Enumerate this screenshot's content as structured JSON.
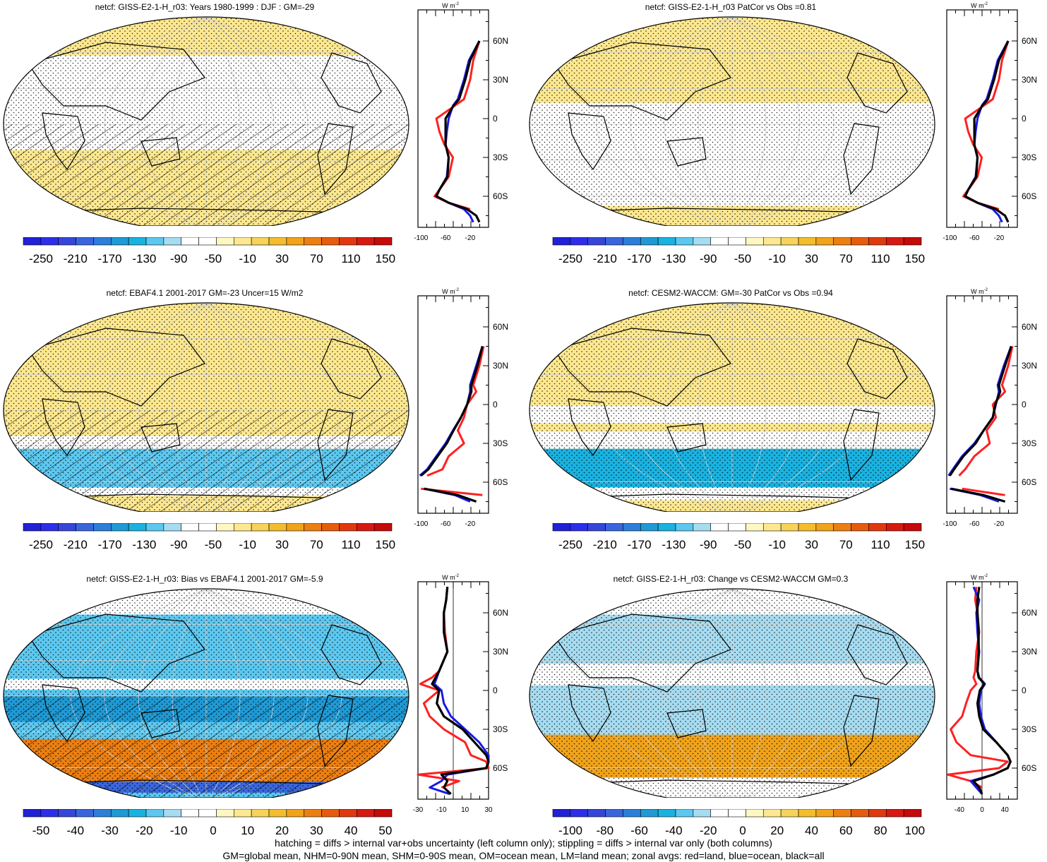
{
  "colors": {
    "blue_scale": [
      "#2121d8",
      "#2e2eea",
      "#3546d9",
      "#3a66dd",
      "#2c7fd9",
      "#1f9ad5",
      "#1ab2e0",
      "#5cc8f0",
      "#a6dcf1"
    ],
    "warm_scale": [
      "#fff7c2",
      "#fde88f",
      "#f8d35a",
      "#f3bd2f",
      "#f0a31b",
      "#ec7f12",
      "#e65c0e",
      "#e03910",
      "#d61a12",
      "#c50a0a"
    ],
    "white": "#ffffff",
    "land_line": "#ff2020",
    "ocean_line": "#1a1ae0",
    "all_line": "#000000"
  },
  "footer": {
    "line1": "hatching = diffs > internal var+obs uncertainty (left column only); stippling = diffs > internal var only (both columns)",
    "line2": "GM=global mean, NHM=0-90N mean, SHM=0-90S mean, OM=ocean mean, LM=land mean; zonal avgs: red=land, blue=ocean, black=all"
  },
  "panels": [
    {
      "id": "giss",
      "title": "netcf: GISS-E2-1-H_r03: Years 1980-1999 : DJF : GM=-29",
      "hatching": true,
      "colorbar_labels": [
        "-250",
        "-210",
        "-170",
        "-130",
        "-90",
        "-50",
        "-10",
        "30",
        "70",
        "110",
        "150"
      ],
      "zonal": {
        "unit_label": "W m",
        "unit_exp": "-2",
        "lat_labels": [
          "60N",
          "30N",
          "0",
          "30S",
          "60S"
        ],
        "lat_values": [
          60,
          30,
          0,
          -30,
          -60
        ],
        "x_labels": [
          "-100",
          "-60",
          "-20"
        ],
        "x_values": [
          -100,
          -60,
          -20
        ],
        "xlim": [
          -105,
          10
        ],
        "zero_line": false
      }
    },
    {
      "id": "giss_patcor",
      "title": "netcf: GISS-E2-1-H_r03 PatCor vs Obs =0.81",
      "hatching": false,
      "colorbar_labels": [
        "-250",
        "-210",
        "-170",
        "-130",
        "-90",
        "-50",
        "-10",
        "30",
        "70",
        "110",
        "150"
      ],
      "zonal": {
        "unit_label": "W m",
        "unit_exp": "-2",
        "lat_labels": [
          "60N",
          "30N",
          "0",
          "30S",
          "60S"
        ],
        "lat_values": [
          60,
          30,
          0,
          -30,
          -60
        ],
        "x_labels": [
          "-100",
          "-60",
          "-20"
        ],
        "x_values": [
          -100,
          -60,
          -20
        ],
        "xlim": [
          -105,
          10
        ],
        "zero_line": false
      }
    },
    {
      "id": "ebaf",
      "title": "netcf: EBAF4.1 2001-2017 GM=-23 Uncer=15 W/m2",
      "hatching": true,
      "colorbar_labels": [
        "-250",
        "-210",
        "-170",
        "-130",
        "-90",
        "-50",
        "-10",
        "30",
        "70",
        "110",
        "150"
      ],
      "zonal": {
        "unit_label": "W m",
        "unit_exp": "-2",
        "lat_labels": [
          "60N",
          "30N",
          "0",
          "30S",
          "60S"
        ],
        "lat_values": [
          60,
          30,
          0,
          -30,
          -60
        ],
        "x_labels": [
          "-100",
          "-60",
          "-20"
        ],
        "x_values": [
          -100,
          -60,
          -20
        ],
        "xlim": [
          -105,
          10
        ],
        "zero_line": false
      }
    },
    {
      "id": "cesm",
      "title": "netcf: CESM2-WACCM: GM=-30 PatCor vs Obs =0.94",
      "hatching": false,
      "colorbar_labels": [
        "-250",
        "-210",
        "-170",
        "-130",
        "-90",
        "-50",
        "-10",
        "30",
        "70",
        "110",
        "150"
      ],
      "zonal": {
        "unit_label": "W m",
        "unit_exp": "-2",
        "lat_labels": [
          "60N",
          "30N",
          "0",
          "30S",
          "60S"
        ],
        "lat_values": [
          60,
          30,
          0,
          -30,
          -60
        ],
        "x_labels": [
          "-100",
          "-60",
          "-20"
        ],
        "x_values": [
          -100,
          -60,
          -20
        ],
        "xlim": [
          -105,
          10
        ],
        "zero_line": false
      }
    },
    {
      "id": "bias",
      "title": "netcf: GISS-E2-1-H_r03: Bias vs EBAF4.1 2001-2017 GM=-5.9",
      "hatching": true,
      "colorbar_labels": [
        "-50",
        "-40",
        "-30",
        "-20",
        "-10",
        "0",
        "10",
        "20",
        "30",
        "40",
        "50"
      ],
      "zonal": {
        "unit_label": "W m",
        "unit_exp": "-2",
        "lat_labels": [
          "60N",
          "30N",
          "0",
          "30S",
          "60S"
        ],
        "lat_values": [
          60,
          30,
          0,
          -30,
          -60
        ],
        "x_labels": [
          "-30",
          "-10",
          "10",
          "30"
        ],
        "x_values": [
          -30,
          -10,
          10,
          30
        ],
        "xlim": [
          -30,
          30
        ],
        "zero_line": true
      }
    },
    {
      "id": "change",
      "title": "netcf: GISS-E2-1-H_r03: Change vs CESM2-WACCM GM=0.3",
      "hatching": false,
      "colorbar_labels": [
        "-100",
        "-80",
        "-60",
        "-40",
        "-20",
        "0",
        "20",
        "40",
        "60",
        "80",
        "100"
      ],
      "zonal": {
        "unit_label": "W m",
        "unit_exp": "-2",
        "lat_labels": [
          "60N",
          "30N",
          "0",
          "30S",
          "60S"
        ],
        "lat_values": [
          60,
          30,
          0,
          -30,
          -60
        ],
        "x_labels": [
          "-40",
          "0",
          "40"
        ],
        "x_values": [
          -40,
          0,
          40
        ],
        "xlim": [
          -62,
          62
        ],
        "zero_line": true
      }
    }
  ],
  "chart_data": [
    {
      "type": "line",
      "panel": "giss",
      "x_axis": "zonal mean netcf (W m-2)",
      "y_axis": "latitude",
      "lat": [
        80,
        70,
        60,
        45,
        30,
        15,
        10,
        0,
        -10,
        -20,
        -30,
        -45,
        -55,
        -60,
        -65,
        -70,
        -75,
        -80
      ],
      "series": [
        {
          "name": "land",
          "values": [
            null,
            null,
            -5,
            -15,
            -20,
            -30,
            -45,
            -75,
            -70,
            -62,
            -48,
            -55,
            -70,
            -78,
            -55,
            -20,
            null,
            null
          ]
        },
        {
          "name": "ocean",
          "values": [
            null,
            null,
            -5,
            -22,
            -30,
            -40,
            -48,
            -55,
            -58,
            -60,
            -55,
            -58,
            -70,
            -75,
            -55,
            -30,
            -20,
            -15
          ]
        },
        {
          "name": "all",
          "values": [
            null,
            null,
            -5,
            -20,
            -28,
            -38,
            -47,
            -60,
            -60,
            -60,
            -55,
            -57,
            -70,
            -75,
            -55,
            -25,
            -10,
            -5
          ]
        }
      ]
    },
    {
      "type": "line",
      "panel": "giss_patcor",
      "x_axis": "zonal mean netcf (W m-2)",
      "y_axis": "latitude",
      "lat": [
        80,
        70,
        60,
        45,
        30,
        15,
        10,
        0,
        -10,
        -20,
        -30,
        -45,
        -55,
        -60,
        -65,
        -70,
        -75,
        -80
      ],
      "series": [
        {
          "name": "land",
          "values": [
            null,
            null,
            -5,
            -15,
            -20,
            -30,
            -45,
            -75,
            -70,
            -62,
            -48,
            -55,
            -70,
            -78,
            -55,
            -20,
            null,
            null
          ]
        },
        {
          "name": "ocean",
          "values": [
            null,
            null,
            -5,
            -22,
            -30,
            -40,
            -48,
            -55,
            -58,
            -60,
            -55,
            -58,
            -70,
            -75,
            -55,
            -30,
            -20,
            -15
          ]
        },
        {
          "name": "all",
          "values": [
            null,
            null,
            -5,
            -20,
            -28,
            -38,
            -47,
            -60,
            -60,
            -60,
            -55,
            -57,
            -70,
            -75,
            -55,
            -25,
            -10,
            -5
          ]
        }
      ]
    },
    {
      "type": "line",
      "panel": "ebaf",
      "x_axis": "zonal mean netcf (W m-2)",
      "y_axis": "latitude",
      "lat": [
        80,
        70,
        60,
        45,
        30,
        15,
        10,
        0,
        -10,
        -20,
        -30,
        -40,
        -50,
        -55,
        -60,
        -65,
        -70,
        -75
      ],
      "series": [
        {
          "name": "land",
          "values": [
            null,
            null,
            null,
            2,
            -5,
            -15,
            -10,
            -25,
            -30,
            -40,
            -30,
            -55,
            -65,
            -90,
            null,
            -100,
            0,
            null
          ]
        },
        {
          "name": "ocean",
          "values": [
            null,
            null,
            null,
            0,
            -10,
            -20,
            -20,
            -25,
            -35,
            -48,
            -60,
            -75,
            -90,
            -102,
            null,
            -95,
            -45,
            -20
          ]
        },
        {
          "name": "all",
          "values": [
            null,
            null,
            null,
            0,
            -8,
            -18,
            -18,
            -25,
            -35,
            -47,
            -58,
            -73,
            -88,
            -100,
            null,
            -95,
            -40,
            -10
          ]
        }
      ]
    },
    {
      "type": "line",
      "panel": "cesm",
      "x_axis": "zonal mean netcf (W m-2)",
      "y_axis": "latitude",
      "lat": [
        80,
        70,
        60,
        45,
        30,
        15,
        10,
        0,
        -10,
        -20,
        -30,
        -40,
        -50,
        -55,
        -60,
        -65,
        -70,
        -75
      ],
      "series": [
        {
          "name": "land",
          "values": [
            null,
            null,
            null,
            2,
            -5,
            -15,
            -10,
            -30,
            -25,
            -40,
            -35,
            -60,
            -75,
            -85,
            null,
            -80,
            -10,
            null
          ]
        },
        {
          "name": "ocean",
          "values": [
            null,
            null,
            null,
            0,
            -12,
            -22,
            -20,
            -25,
            -30,
            -45,
            -60,
            -80,
            -95,
            -102,
            null,
            -100,
            -50,
            -20
          ]
        },
        {
          "name": "all",
          "values": [
            null,
            null,
            null,
            0,
            -10,
            -20,
            -18,
            -26,
            -30,
            -45,
            -58,
            -78,
            -93,
            -100,
            null,
            -98,
            -45,
            -10
          ]
        }
      ]
    },
    {
      "type": "line",
      "panel": "bias",
      "x_axis": "zonal mean netcf bias (W m-2)",
      "y_axis": "latitude",
      "lat": [
        80,
        70,
        60,
        45,
        30,
        15,
        10,
        5,
        0,
        -10,
        -20,
        -30,
        -40,
        -50,
        -55,
        -60,
        -65,
        -70,
        -75,
        -80
      ],
      "series": [
        {
          "name": "land",
          "values": [
            -5,
            -6,
            -8,
            -7,
            -5,
            -12,
            -18,
            -28,
            -12,
            -25,
            -20,
            -8,
            10,
            15,
            28,
            30,
            -30,
            5,
            -10,
            null
          ]
        },
        {
          "name": "ocean",
          "values": [
            -5,
            -6,
            -8,
            -8,
            -5,
            -12,
            -14,
            -16,
            -10,
            -8,
            -2,
            10,
            22,
            30,
            30,
            28,
            -5,
            -10,
            -20,
            -3
          ]
        },
        {
          "name": "all",
          "values": [
            -5,
            -6,
            -8,
            -8,
            -5,
            -12,
            -15,
            -18,
            -12,
            -14,
            -8,
            8,
            18,
            28,
            30,
            28,
            -10,
            -5,
            -8,
            -2
          ]
        }
      ]
    },
    {
      "type": "line",
      "panel": "change",
      "x_axis": "zonal mean netcf change (W m-2)",
      "y_axis": "latitude",
      "lat": [
        80,
        70,
        60,
        45,
        30,
        15,
        10,
        5,
        0,
        -10,
        -20,
        -30,
        -40,
        -50,
        -55,
        -60,
        -65,
        -70,
        -75,
        -80
      ],
      "series": [
        {
          "name": "land",
          "values": [
            -10,
            -12,
            -8,
            -5,
            -10,
            -12,
            -15,
            -10,
            -20,
            -28,
            -35,
            -55,
            -45,
            -20,
            45,
            30,
            -60,
            -20,
            0,
            null
          ]
        },
        {
          "name": "ocean",
          "values": [
            -15,
            -5,
            -10,
            -8,
            -5,
            -8,
            -5,
            5,
            -2,
            -5,
            -2,
            5,
            25,
            45,
            50,
            45,
            20,
            -20,
            -10,
            0
          ]
        },
        {
          "name": "all",
          "values": [
            -5,
            -8,
            -8,
            -6,
            -6,
            -8,
            -6,
            4,
            -4,
            -8,
            -5,
            2,
            25,
            45,
            50,
            45,
            20,
            -15,
            -5,
            0
          ]
        }
      ]
    }
  ]
}
